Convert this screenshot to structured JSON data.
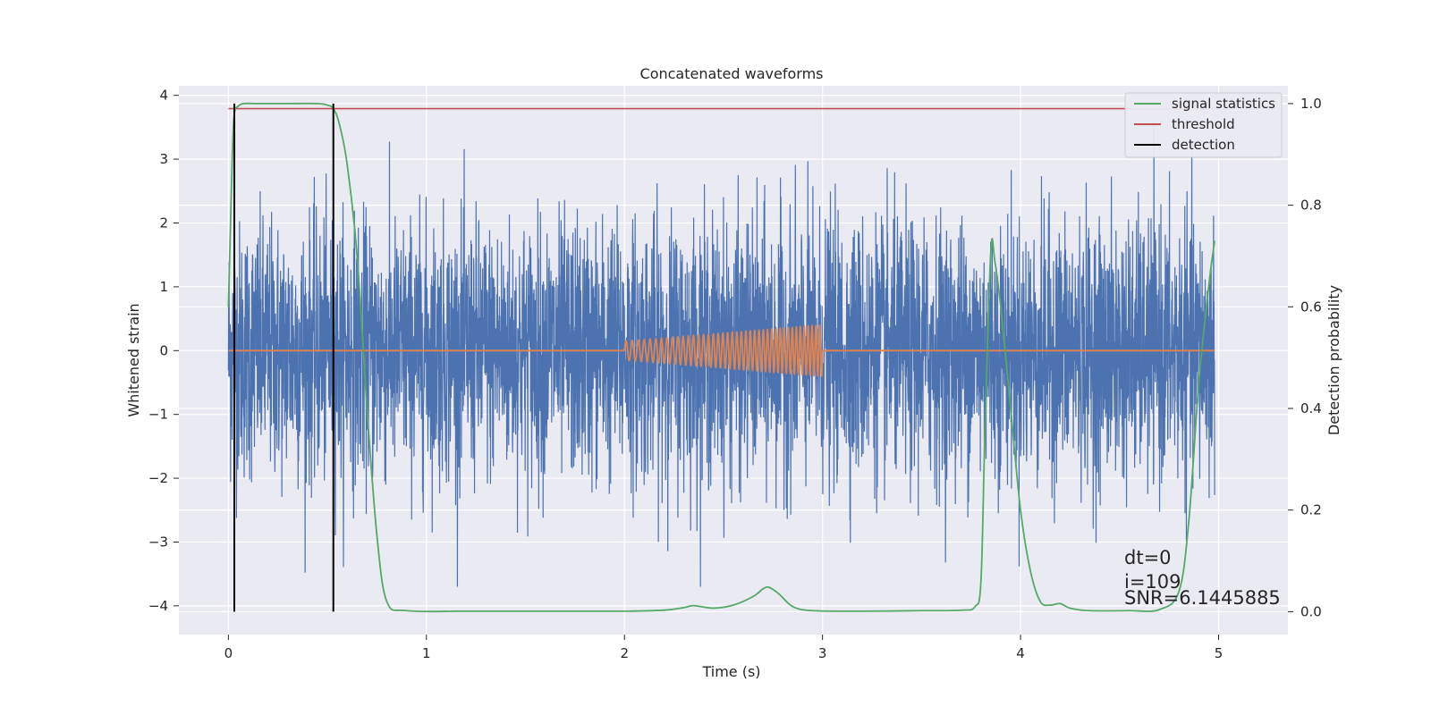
{
  "chart_data": {
    "type": "line",
    "title": "Concatenated waveforms",
    "xlabel": "Time (s)",
    "ylabel": "Whitened strain",
    "ylabel_right": "Detection probability",
    "xlim": [
      -0.25,
      5.35
    ],
    "ylim": [
      -4.45,
      4.15
    ],
    "ylim_right": [
      -0.045,
      1.035
    ],
    "xticks": [
      0,
      1,
      2,
      3,
      4,
      5
    ],
    "yticks": [
      -4,
      -3,
      -2,
      -1,
      0,
      1,
      2,
      3,
      4
    ],
    "yticks_right": [
      0.0,
      0.2,
      0.4,
      0.6,
      0.8,
      1.0
    ],
    "xtick_labels": [
      "0",
      "1",
      "2",
      "3",
      "4",
      "5"
    ],
    "ytick_labels": [
      "−4",
      "−3",
      "−2",
      "−1",
      "0",
      "1",
      "2",
      "3",
      "4"
    ],
    "ytick_right_labels": [
      "0.0",
      "0.2",
      "0.4",
      "0.6",
      "0.8",
      "1.0"
    ],
    "grid": true,
    "legend": {
      "position": "top-right",
      "entries": [
        {
          "label": "signal statistics",
          "color": "#55a868"
        },
        {
          "label": "threshold",
          "color": "#c44e52"
        },
        {
          "label": "detection",
          "color": "#000000"
        }
      ]
    },
    "noise_series": {
      "color": "#4c72b0",
      "x_start": 0,
      "x_end": 4.98,
      "approx_range": [
        -3.7,
        3.75
      ],
      "typical_amplitude": 1.0
    },
    "template_series": {
      "color": "#dd8452",
      "x_start": 0,
      "x_end": 4.98,
      "chirp_start": 2.0,
      "chirp_end": 3.0,
      "chirp_amplitude_start": 0.15,
      "chirp_amplitude_end": 0.4,
      "chirp_cycles": 42
    },
    "signal_statistics": {
      "axis": "right",
      "color": "#55a868",
      "x": [
        0.0,
        0.01,
        0.02,
        0.03,
        0.05,
        0.08,
        0.15,
        0.3,
        0.45,
        0.5,
        0.53,
        0.56,
        0.6,
        0.65,
        0.7,
        0.75,
        0.8,
        0.9,
        1.2,
        1.6,
        2.0,
        2.2,
        2.3,
        2.35,
        2.45,
        2.55,
        2.65,
        2.7,
        2.73,
        2.78,
        2.85,
        2.95,
        3.2,
        3.5,
        3.7,
        3.77,
        3.8,
        3.82,
        3.85,
        3.87,
        3.9,
        3.95,
        4.0,
        4.05,
        4.1,
        4.15,
        4.2,
        4.25,
        4.35,
        4.55,
        4.7,
        4.8,
        4.85,
        4.9,
        4.95,
        4.98
      ],
      "y": [
        0.6,
        0.75,
        0.9,
        0.98,
        0.995,
        1.0,
        1.0,
        1.0,
        1.0,
        0.997,
        0.99,
        0.96,
        0.88,
        0.7,
        0.4,
        0.15,
        0.02,
        0.002,
        0.001,
        0.001,
        0.001,
        0.003,
        0.008,
        0.012,
        0.007,
        0.013,
        0.03,
        0.045,
        0.048,
        0.035,
        0.01,
        0.002,
        0.001,
        0.002,
        0.003,
        0.01,
        0.06,
        0.35,
        0.71,
        0.69,
        0.6,
        0.4,
        0.2,
        0.08,
        0.02,
        0.013,
        0.016,
        0.007,
        0.002,
        0.002,
        0.004,
        0.04,
        0.18,
        0.45,
        0.64,
        0.73
      ]
    },
    "threshold": {
      "axis": "right",
      "color": "#c44e52",
      "value": 0.99,
      "x_range": [
        0,
        4.98
      ]
    },
    "detections": {
      "color": "#000000",
      "x": [
        0.03,
        0.53
      ],
      "y_range_right": [
        0.0,
        1.0
      ]
    },
    "annotations": [
      "dt=0",
      "i=109",
      "SNR=6.1445885"
    ],
    "annotation_x": 4.5
  }
}
